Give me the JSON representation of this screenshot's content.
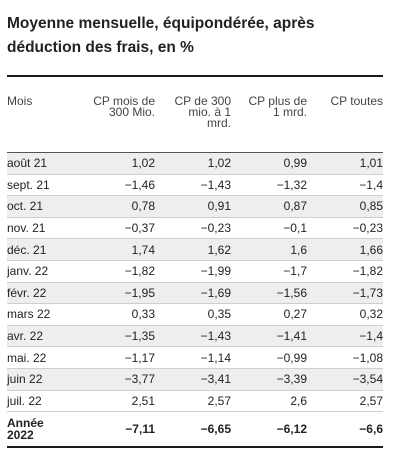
{
  "title_line1": "Moyenne mensuelle, équipondérée, après",
  "title_line2": "déduction des frais, en %",
  "columns": [
    [
      "Mois"
    ],
    [
      "CP mois de",
      "300 Mio."
    ],
    [
      "CP de 300",
      "mio. à 1",
      "mrd."
    ],
    [
      "CP plus de",
      "1 mrd."
    ],
    [
      "CP toutes"
    ]
  ],
  "rows": [
    [
      "août 21",
      "1,02",
      "1,02",
      "0,99",
      "1,01"
    ],
    [
      "sept. 21",
      "−1,46",
      "−1,43",
      "−1,32",
      "−1,4"
    ],
    [
      "oct. 21",
      "0,78",
      "0,91",
      "0,87",
      "0,85"
    ],
    [
      "nov. 21",
      "−0,37",
      "−0,23",
      "−0,1",
      "−0,23"
    ],
    [
      "déc. 21",
      "1,74",
      "1,62",
      "1,6",
      "1,66"
    ],
    [
      "janv. 22",
      "−1,82",
      "−1,99",
      "−1,7",
      "−1,82"
    ],
    [
      "févr. 22",
      "−1,95",
      "−1,69",
      "−1,56",
      "−1,73"
    ],
    [
      "mars 22",
      "0,33",
      "0,35",
      "0,27",
      "0,32"
    ],
    [
      "avr. 22",
      "−1,35",
      "−1,43",
      "−1,41",
      "−1,4"
    ],
    [
      "mai. 22",
      "−1,17",
      "−1,14",
      "−0,99",
      "−1,08"
    ],
    [
      "juin 22",
      "−3,77",
      "−3,41",
      "−3,39",
      "−3,54"
    ],
    [
      "juil. 22",
      "2,51",
      "2,57",
      "2,6",
      "2,57"
    ]
  ],
  "total": {
    "label_line1": "Année",
    "label_line2": "2022",
    "values": [
      "−7,11",
      "−6,65",
      "−6,12",
      "−6,6"
    ]
  }
}
